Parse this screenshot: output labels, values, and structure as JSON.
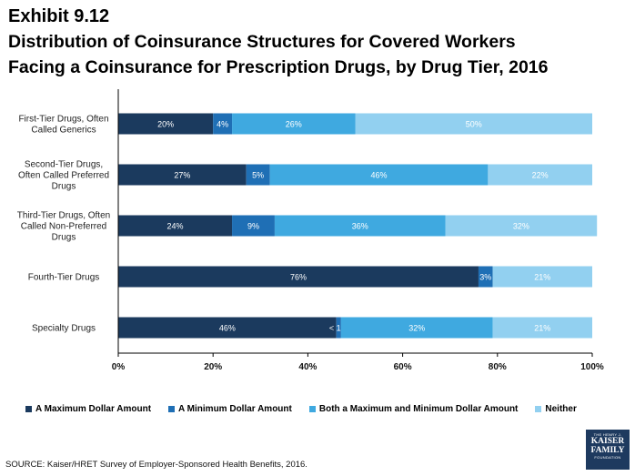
{
  "header": {
    "exhibit": "Exhibit 9.12",
    "title_line1": "Distribution of Coinsurance Structures for Covered Workers",
    "title_line2": "Facing a Coinsurance for Prescription Drugs, by Drug Tier, 2016"
  },
  "chart_data": {
    "type": "bar",
    "orientation": "horizontal",
    "stacked": true,
    "categories": [
      [
        "First-Tier Drugs, Often",
        "Called Generics"
      ],
      [
        "Second-Tier Drugs,",
        "Often Called Preferred",
        "Drugs"
      ],
      [
        "Third-Tier Drugs, Often",
        "Called Non-Preferred",
        "Drugs"
      ],
      [
        "Fourth-Tier Drugs"
      ],
      [
        "Specialty Drugs"
      ]
    ],
    "series": [
      {
        "name": "A Maximum Dollar Amount",
        "color": "#1b3a5e",
        "values": [
          20,
          27,
          24,
          76,
          46
        ],
        "labels": [
          "20%",
          "27%",
          "24%",
          "76%",
          "46%"
        ]
      },
      {
        "name": "A Minimum Dollar Amount",
        "color": "#1f6fb5",
        "values": [
          4,
          5,
          9,
          3,
          1
        ],
        "labels": [
          "4%",
          "5%",
          "9%",
          "3%",
          "< 1%"
        ]
      },
      {
        "name": "Both a Maximum and Minimum Dollar Amount",
        "color": "#3fa9e0",
        "values": [
          26,
          46,
          36,
          0,
          32
        ],
        "labels": [
          "26%",
          "46%",
          "36%",
          "",
          "32%"
        ]
      },
      {
        "name": "Neither",
        "color": "#92d0f0",
        "values": [
          50,
          22,
          32,
          21,
          21
        ],
        "labels": [
          "50%",
          "22%",
          "32%",
          "21%",
          "21%"
        ]
      }
    ],
    "xlim": [
      0,
      100
    ],
    "xticks": [
      "0%",
      "20%",
      "40%",
      "60%",
      "80%",
      "100%"
    ],
    "legend": "bottom"
  },
  "footer": {
    "source": "SOURCE: Kaiser/HRET Survey of Employer-Sponsored Health Benefits, 2016.",
    "logo_top": "THE HENRY J.",
    "logo_line1": "KAISER",
    "logo_line2": "FAMILY",
    "logo_bottom": "FOUNDATION"
  }
}
